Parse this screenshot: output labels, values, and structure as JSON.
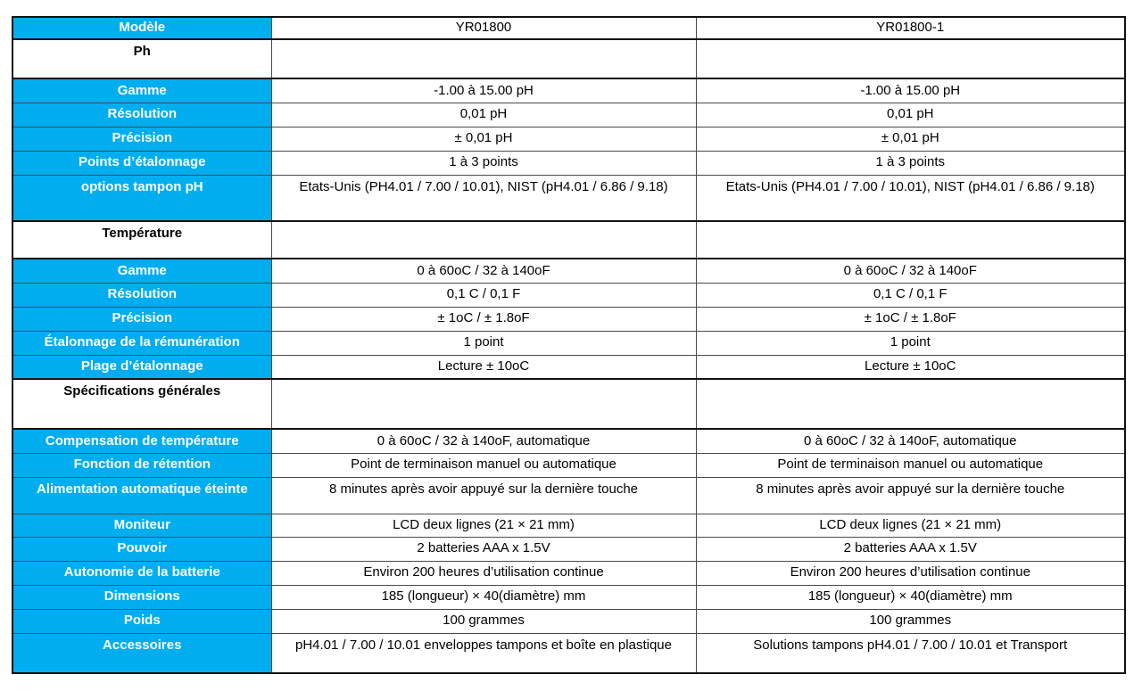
{
  "table": {
    "colors": {
      "accent_blue": "#00AEEF",
      "label_text": "#FFFFFF",
      "body_text": "#000000"
    },
    "rows": [
      {
        "type": "header",
        "label": "Modèle",
        "v1": "YR01800",
        "v2": "YR01800-1"
      },
      {
        "type": "section",
        "label": "Ph",
        "v1": "",
        "v2": ""
      },
      {
        "type": "data",
        "label": "Gamme",
        "v1": "-1.00 à 15.00 pH",
        "v2": "-1.00 à 15.00 pH"
      },
      {
        "type": "data",
        "label": "Résolution",
        "v1": "0,01 pH",
        "v2": "0,01 pH"
      },
      {
        "type": "data",
        "label": "Précision",
        "v1": "± 0,01 pH",
        "v2": "± 0,01 pH"
      },
      {
        "type": "data",
        "label": "Points  d’étalonnage",
        "v1": "1 à 3 points",
        "v2": "1 à 3 points"
      },
      {
        "type": "data",
        "label": "options tampon pH",
        "v1": "Etats-Unis (PH4.01 / 7.00 / 10.01), NIST (pH4.01 / 6.86 / 9.18)",
        "v2": "Etats-Unis (PH4.01 / 7.00 / 10.01), NIST (pH4.01 / 6.86 / 9.18)"
      },
      {
        "type": "section",
        "label": "Température",
        "v1": "",
        "v2": ""
      },
      {
        "type": "data",
        "label": "Gamme",
        "v1": "0 à 60oC / 32 à 140oF",
        "v2": "0 à 60oC / 32 à 140oF"
      },
      {
        "type": "data",
        "label": "Résolution",
        "v1": "0,1 C / 0,1 F",
        "v2": "0,1 C / 0,1 F"
      },
      {
        "type": "data",
        "label": "Précision",
        "v1": "± 1oC  / ± 1.8oF",
        "v2": "± 1oC  / ± 1.8oF"
      },
      {
        "type": "data",
        "label": "Étalonnage de la rémunération",
        "v1": "1 point",
        "v2": "1 point"
      },
      {
        "type": "data",
        "label": "Plage d’étalonnage",
        "v1": "Lecture ± 10oC",
        "v2": "Lecture ± 10oC"
      },
      {
        "type": "section",
        "label": "Spécifications générales",
        "v1": "",
        "v2": ""
      },
      {
        "type": "data",
        "label": "Compensation  de température",
        "v1": "0 à 60oC   / 32 à 140oF,   automatique",
        "v2": "0 à 60oC   / 32 à 140oF,  automatique"
      },
      {
        "type": "data",
        "label": "Fonction de rétention",
        "v1": "Point de terminaison manuel ou automatique",
        "v2": "Point de terminaison manuel ou automatique"
      },
      {
        "type": "data",
        "label": "Alimentation automatique éteinte",
        "v1": "8 minutes après avoir appuyé  sur la dernière touche",
        "v2": "8 minutes après avoir appuyé  sur la dernière touche"
      },
      {
        "type": "data",
        "label": "Moniteur",
        "v1": "LCD deux lignes   (21 × 21 mm)",
        "v2": "LCD deux lignes   (21 × 21 mm)"
      },
      {
        "type": "data",
        "label": "Pouvoir",
        "v1": "2 batteries AAA  x 1.5V",
        "v2": "2 batteries AAA  x 1.5V"
      },
      {
        "type": "data",
        "label": "Autonomie de la  batterie",
        "v1": "Environ 200 heures d’utilisation  continue",
        "v2": "Environ 200 heures d’utilisation  continue"
      },
      {
        "type": "data",
        "label": "Dimensions",
        "v1": "185 (longueur) × 40(diamètre) mm",
        "v2": "185 (longueur) × 40(diamètre) mm"
      },
      {
        "type": "data",
        "label": "Poids",
        "v1": "100 grammes",
        "v2": "100 grammes"
      },
      {
        "type": "data",
        "label": "Accessoires",
        "v1": "pH4.01 / 7.00 / 10.01  enveloppes tampons et  boîte en plastique",
        "v2": "Solutions  tampons pH4.01 / 7.00 / 10.01 et Transport"
      }
    ]
  }
}
